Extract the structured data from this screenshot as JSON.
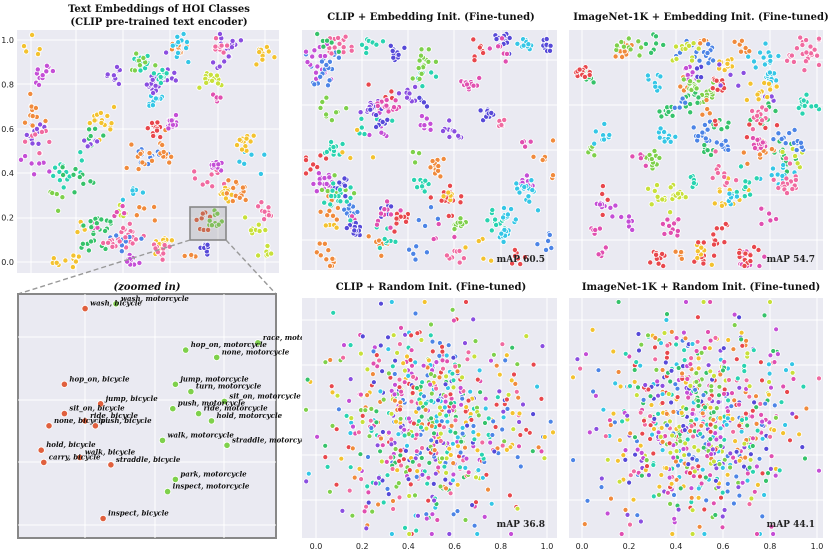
{
  "chart_data": [
    {
      "type": "scatter",
      "title": "Text Embeddings of HOI Classes",
      "subtitle": "(CLIP pre-trained text encoder)",
      "y_ticks": [
        "0.0",
        "0.2",
        "0.4",
        "0.6",
        "0.8",
        "1.0"
      ],
      "grid": true
    },
    {
      "type": "scatter",
      "title": "(zoomed in)",
      "points": [
        {
          "label": "wash, motorcycle",
          "x": 0.38,
          "y": 0.96,
          "group": "motorcycle"
        },
        {
          "label": "wash, bicycle",
          "x": 0.26,
          "y": 0.94,
          "group": "bicycle"
        },
        {
          "label": "race, motorcycle",
          "x": 0.93,
          "y": 0.8,
          "group": "motorcycle"
        },
        {
          "label": "hop_on, motorcycle",
          "x": 0.65,
          "y": 0.77,
          "group": "motorcycle"
        },
        {
          "label": "none, motorcycle",
          "x": 0.77,
          "y": 0.74,
          "group": "motorcycle"
        },
        {
          "label": "hop_on, bicycle",
          "x": 0.18,
          "y": 0.63,
          "group": "bicycle"
        },
        {
          "label": "jump, motorcycle",
          "x": 0.61,
          "y": 0.63,
          "group": "motorcycle"
        },
        {
          "label": "turn, motorcycle",
          "x": 0.67,
          "y": 0.6,
          "group": "motorcycle"
        },
        {
          "label": "jump, bicycle",
          "x": 0.32,
          "y": 0.55,
          "group": "bicycle"
        },
        {
          "label": "sit_on, motorcycle",
          "x": 0.8,
          "y": 0.56,
          "group": "motorcycle"
        },
        {
          "label": "push, motorcycle",
          "x": 0.6,
          "y": 0.53,
          "group": "motorcycle"
        },
        {
          "label": "sit_on, bicycle",
          "x": 0.18,
          "y": 0.51,
          "group": "bicycle"
        },
        {
          "label": "ride, motorcycle",
          "x": 0.7,
          "y": 0.51,
          "group": "motorcycle"
        },
        {
          "label": "ride, bicycle",
          "x": 0.26,
          "y": 0.48,
          "group": "bicycle"
        },
        {
          "label": "hold, motorcycle",
          "x": 0.75,
          "y": 0.48,
          "group": "motorcycle"
        },
        {
          "label": "none, bicycle",
          "x": 0.12,
          "y": 0.46,
          "group": "bicycle"
        },
        {
          "label": "push, bicycle",
          "x": 0.3,
          "y": 0.46,
          "group": "bicycle"
        },
        {
          "label": "walk, motorcycle",
          "x": 0.56,
          "y": 0.4,
          "group": "motorcycle"
        },
        {
          "label": "straddle, motorcycle",
          "x": 0.81,
          "y": 0.38,
          "group": "motorcycle"
        },
        {
          "label": "hold, bicycle",
          "x": 0.09,
          "y": 0.36,
          "group": "bicycle"
        },
        {
          "label": "walk, bicycle",
          "x": 0.24,
          "y": 0.33,
          "group": "bicycle"
        },
        {
          "label": "carry, bicycle",
          "x": 0.1,
          "y": 0.31,
          "group": "bicycle"
        },
        {
          "label": "straddle, bicycle",
          "x": 0.36,
          "y": 0.3,
          "group": "bicycle"
        },
        {
          "label": "park, motorcycle",
          "x": 0.61,
          "y": 0.24,
          "group": "motorcycle"
        },
        {
          "label": "inspect, motorcycle",
          "x": 0.58,
          "y": 0.19,
          "group": "motorcycle"
        },
        {
          "label": "inspect, bicycle",
          "x": 0.33,
          "y": 0.08,
          "group": "bicycle"
        }
      ]
    },
    {
      "type": "scatter",
      "title": "CLIP + Embedding Init. (Fine-tuned)",
      "annotation": "mAP 60.5",
      "grid": true
    },
    {
      "type": "scatter",
      "title": "ImageNet-1K + Embedding Init. (Fine-tuned)",
      "annotation": "mAP 54.7",
      "grid": true
    },
    {
      "type": "scatter",
      "title": "CLIP  + Random Init. (Fine-tuned)",
      "annotation": "mAP 36.8",
      "x_ticks": [
        "0.0",
        "0.2",
        "0.4",
        "0.6",
        "0.8",
        "1.0"
      ],
      "grid": true
    },
    {
      "type": "scatter",
      "title": "ImageNet-1K + Random Init. (Fine-tuned)",
      "annotation": "mAP 44.1",
      "x_ticks": [
        "0.0",
        "0.2",
        "0.4",
        "0.6",
        "0.8",
        "1.0"
      ],
      "grid": true
    }
  ],
  "colors": {
    "panel_bg": "#eaeaf2",
    "grid": "#ffffff",
    "bicycle": "#e0603e",
    "motorcycle": "#7ed04b",
    "zoom_box": "#888888",
    "palette": [
      "#e8474c",
      "#f08a3c",
      "#f3c22f",
      "#c8e03a",
      "#7ed04b",
      "#36c26a",
      "#29d3b0",
      "#35c6e6",
      "#4c84e6",
      "#5649d8",
      "#8a4ee0",
      "#c44ed6",
      "#e04fb0",
      "#f06aa0"
    ]
  }
}
